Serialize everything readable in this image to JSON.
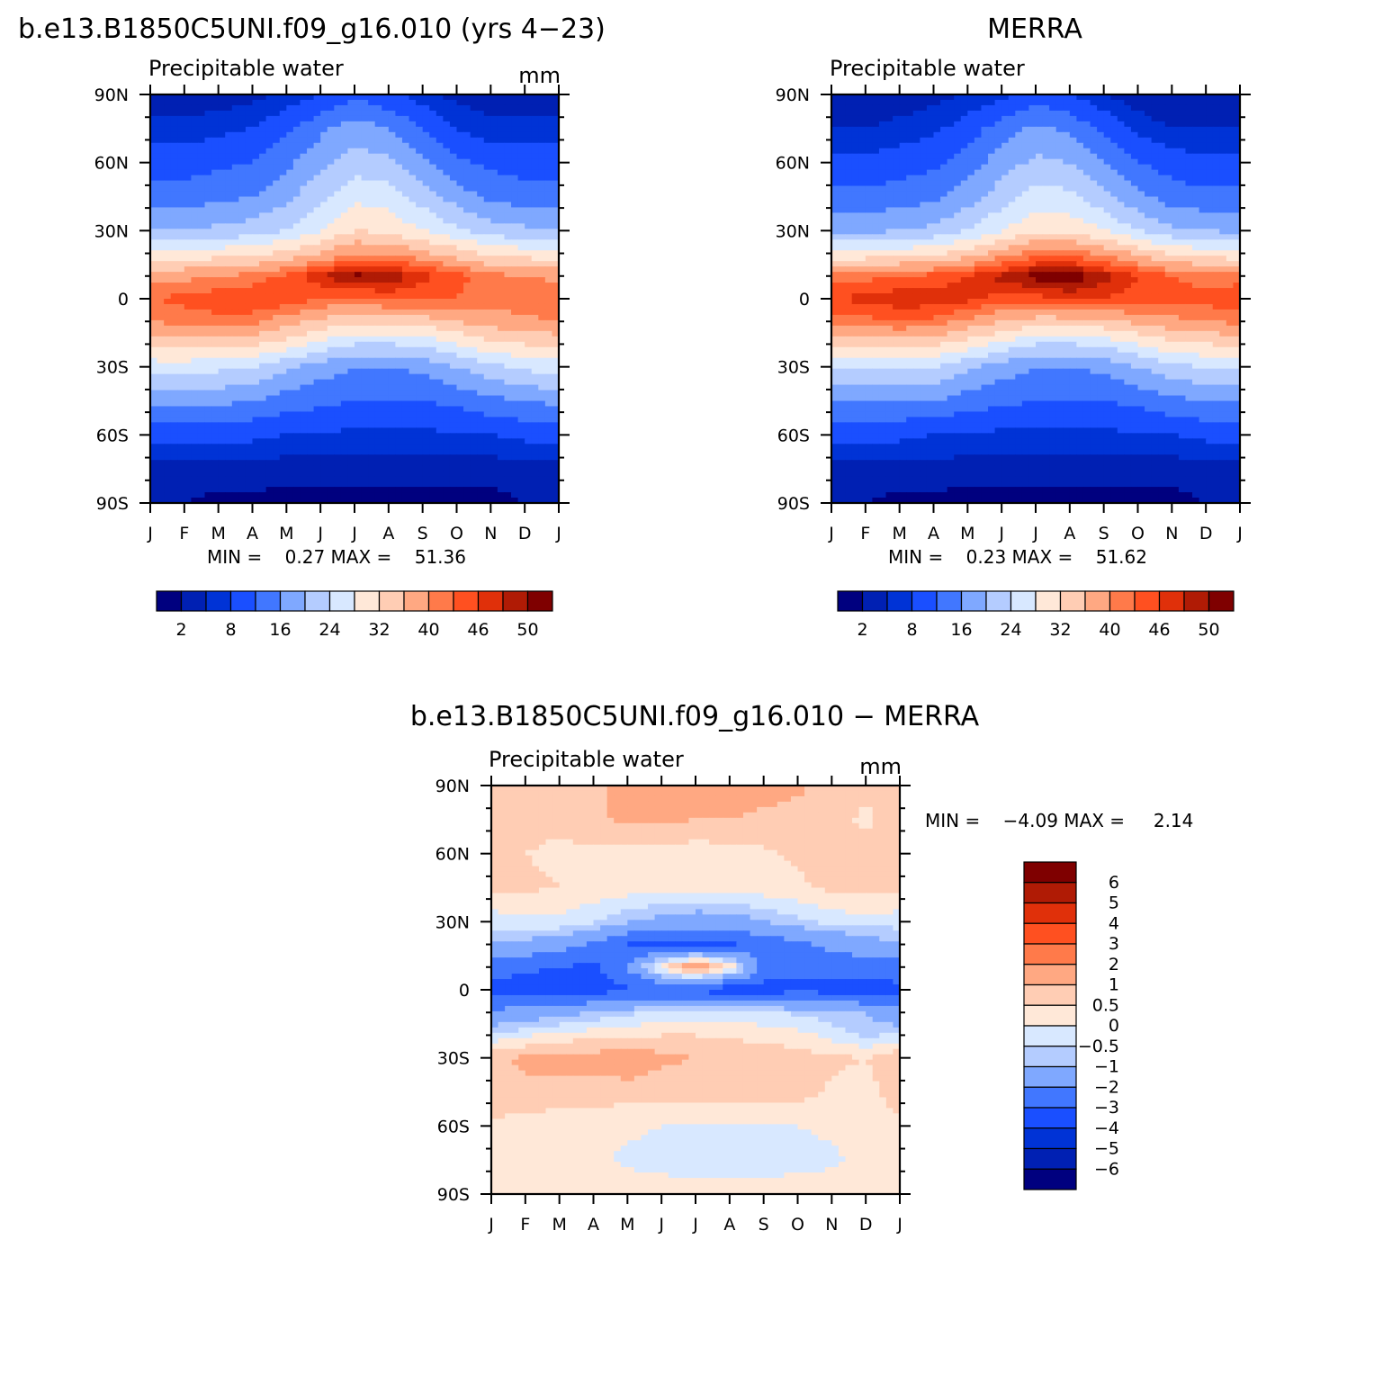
{
  "figure": {
    "palette": {
      "absolute": [
        "#00007f",
        "#0020b3",
        "#0033d6",
        "#1a4fff",
        "#4177ff",
        "#7fa8ff",
        "#b4ccff",
        "#d8e8ff",
        "#ffe8d8",
        "#ffcdb4",
        "#ffa882",
        "#ff7a4a",
        "#ff5020",
        "#e0300a",
        "#b01b05",
        "#7f0000"
      ],
      "difference": [
        "#00007f",
        "#0020b3",
        "#0033d6",
        "#1a4fff",
        "#4177ff",
        "#7fa8ff",
        "#b4ccff",
        "#d8e8ff",
        "#ffe8d8",
        "#ffcdb4",
        "#ffa882",
        "#ff7a4a",
        "#ff5020",
        "#e0300a",
        "#b01b05",
        "#7f0000"
      ]
    }
  },
  "panels": [
    {
      "id": "model",
      "title": "b.e13.B1850C5UNI.f09_g16.010 (yrs 4−23)",
      "subtitle": "Precipitable water",
      "units": "mm",
      "stats": "MIN =    0.27 MAX =    51.36",
      "colorbar_labels": [
        "2",
        "8",
        "16",
        "24",
        "32",
        "40",
        "46",
        "50"
      ]
    },
    {
      "id": "obs",
      "title": "MERRA",
      "subtitle": "Precipitable water",
      "units": "",
      "stats": "MIN =    0.23 MAX =    51.62",
      "colorbar_labels": [
        "2",
        "8",
        "16",
        "24",
        "32",
        "40",
        "46",
        "50"
      ]
    },
    {
      "id": "diff",
      "title": "b.e13.B1850C5UNI.f09_g16.010 − MERRA",
      "subtitle": "Precipitable water",
      "units": "mm",
      "stats": "MIN =    −4.09 MAX =     2.14",
      "colorbar_labels": [
        "6",
        "5",
        "4",
        "3",
        "2",
        "1",
        "0.5",
        "0",
        "−0.5",
        "−1",
        "−2",
        "−3",
        "−4",
        "−5",
        "−6"
      ]
    }
  ],
  "chart_data": [
    {
      "type": "heatmap",
      "title": "b.e13.B1850C5UNI.f09_g16.010 (yrs 4−23)",
      "subtitle": "Precipitable water",
      "units": "mm",
      "x_tick_labels": [
        "J",
        "F",
        "M",
        "A",
        "M",
        "J",
        "J",
        "A",
        "S",
        "O",
        "N",
        "D",
        "J"
      ],
      "y_tick_labels": [
        "90N",
        "60N",
        "30N",
        "0",
        "30S",
        "60S",
        "90S"
      ],
      "xlim": [
        0,
        12
      ],
      "ylim": [
        -90,
        90
      ],
      "contour_levels": [
        0,
        2,
        5,
        8,
        12,
        16,
        20,
        24,
        28,
        32,
        36,
        40,
        43,
        46,
        48,
        50
      ],
      "min": 0.27,
      "max": 51.36,
      "x": [
        0,
        1,
        2,
        3,
        4,
        5,
        6,
        7,
        8,
        9,
        10,
        11,
        12
      ],
      "lat": [
        90,
        75,
        60,
        45,
        30,
        20,
        10,
        0,
        -10,
        -20,
        -30,
        -45,
        -60,
        -75,
        -90
      ],
      "z": [
        [
          3,
          3,
          3,
          4,
          6,
          8,
          11,
          9,
          6,
          4,
          3,
          3,
          3
        ],
        [
          6,
          6,
          7,
          8,
          11,
          15,
          18,
          16,
          12,
          8,
          6,
          6,
          6
        ],
        [
          10,
          10,
          11,
          12,
          15,
          19,
          22,
          21,
          17,
          13,
          11,
          10,
          10
        ],
        [
          14,
          14,
          15,
          16,
          19,
          23,
          27,
          26,
          22,
          18,
          15,
          14,
          14
        ],
        [
          20,
          20,
          21,
          22,
          24,
          28,
          32,
          31,
          28,
          25,
          22,
          21,
          20
        ],
        [
          29,
          29,
          30,
          31,
          33,
          36,
          40,
          40,
          37,
          34,
          31,
          30,
          29
        ],
        [
          39,
          39,
          40,
          41,
          44,
          48,
          51,
          50,
          47,
          44,
          41,
          40,
          39
        ],
        [
          43,
          44,
          45,
          46,
          45,
          43,
          43,
          44,
          44,
          43,
          42,
          42,
          43
        ],
        [
          40,
          41,
          42,
          41,
          38,
          35,
          33,
          33,
          34,
          36,
          38,
          39,
          40
        ],
        [
          33,
          34,
          34,
          33,
          30,
          27,
          24,
          24,
          25,
          28,
          31,
          32,
          33
        ],
        [
          26,
          26,
          25,
          24,
          21,
          18,
          16,
          16,
          17,
          20,
          23,
          25,
          26
        ],
        [
          17,
          17,
          17,
          16,
          14,
          13,
          12,
          12,
          12,
          13,
          15,
          16,
          17
        ],
        [
          9,
          9,
          9,
          9,
          8,
          8,
          7,
          7,
          7,
          8,
          8,
          9,
          9
        ],
        [
          4,
          4,
          4,
          4,
          3,
          3,
          3,
          3,
          3,
          3,
          3,
          4,
          4
        ],
        [
          2,
          2,
          1,
          1,
          1,
          1,
          1,
          1,
          1,
          1,
          1,
          2,
          2
        ]
      ]
    },
    {
      "type": "heatmap",
      "title": "MERRA",
      "subtitle": "Precipitable water",
      "x_tick_labels": [
        "J",
        "F",
        "M",
        "A",
        "M",
        "J",
        "J",
        "A",
        "S",
        "O",
        "N",
        "D",
        "J"
      ],
      "y_tick_labels": [
        "90N",
        "60N",
        "30N",
        "0",
        "30S",
        "60S",
        "90S"
      ],
      "xlim": [
        0,
        12
      ],
      "ylim": [
        -90,
        90
      ],
      "contour_levels": [
        0,
        2,
        5,
        8,
        12,
        16,
        20,
        24,
        28,
        32,
        36,
        40,
        43,
        46,
        48,
        50
      ],
      "min": 0.23,
      "max": 51.62,
      "x": [
        0,
        1,
        2,
        3,
        4,
        5,
        6,
        7,
        8,
        9,
        10,
        11,
        12
      ],
      "lat": [
        90,
        75,
        60,
        45,
        30,
        20,
        10,
        0,
        -10,
        -20,
        -30,
        -45,
        -60,
        -75,
        -90
      ],
      "z": [
        [
          2,
          2,
          3,
          4,
          5,
          7,
          10,
          8,
          5,
          3,
          2,
          2,
          2
        ],
        [
          5,
          5,
          6,
          7,
          10,
          14,
          17,
          15,
          11,
          7,
          5,
          5,
          5
        ],
        [
          9,
          9,
          10,
          11,
          14,
          18,
          21,
          20,
          16,
          12,
          10,
          9,
          9
        ],
        [
          13,
          13,
          14,
          15,
          18,
          22,
          26,
          25,
          21,
          17,
          14,
          13,
          13
        ],
        [
          19,
          19,
          20,
          21,
          24,
          28,
          31,
          31,
          28,
          24,
          21,
          20,
          19
        ],
        [
          29,
          29,
          30,
          31,
          34,
          38,
          42,
          42,
          39,
          35,
          31,
          30,
          29
        ],
        [
          41,
          42,
          43,
          44,
          46,
          49,
          51,
          52,
          49,
          46,
          43,
          42,
          41
        ],
        [
          46,
          47,
          48,
          48,
          47,
          45,
          45,
          46,
          46,
          45,
          44,
          44,
          46
        ],
        [
          41,
          42,
          43,
          42,
          39,
          36,
          34,
          34,
          35,
          37,
          39,
          40,
          41
        ],
        [
          33,
          33,
          34,
          33,
          30,
          27,
          24,
          24,
          25,
          28,
          31,
          32,
          33
        ],
        [
          25,
          25,
          25,
          24,
          21,
          18,
          16,
          16,
          17,
          20,
          23,
          24,
          25
        ],
        [
          16,
          16,
          16,
          16,
          14,
          13,
          12,
          12,
          12,
          13,
          15,
          16,
          16
        ],
        [
          9,
          9,
          9,
          8,
          8,
          7,
          7,
          7,
          7,
          8,
          8,
          9,
          9
        ],
        [
          4,
          4,
          4,
          4,
          3,
          3,
          3,
          3,
          3,
          3,
          3,
          4,
          4
        ],
        [
          2,
          2,
          1,
          1,
          1,
          1,
          1,
          1,
          1,
          1,
          1,
          2,
          2
        ]
      ]
    },
    {
      "type": "heatmap",
      "title": "b.e13.B1850C5UNI.f09_g16.010 − MERRA",
      "subtitle": "Precipitable water",
      "units": "mm",
      "x_tick_labels": [
        "J",
        "F",
        "M",
        "A",
        "M",
        "J",
        "J",
        "A",
        "S",
        "O",
        "N",
        "D",
        "J"
      ],
      "y_tick_labels": [
        "90N",
        "60N",
        "30N",
        "0",
        "30S",
        "60S",
        "90S"
      ],
      "xlim": [
        0,
        12
      ],
      "ylim": [
        -90,
        90
      ],
      "contour_levels": [
        -7,
        -6,
        -5,
        -4,
        -3,
        -2,
        -1,
        -0.5,
        0,
        0.5,
        1,
        2,
        3,
        4,
        5,
        6
      ],
      "min": -4.09,
      "max": 2.14,
      "x": [
        0,
        1,
        2,
        3,
        4,
        5,
        6,
        7,
        8,
        9,
        10,
        11,
        12
      ],
      "lat": [
        90,
        75,
        60,
        45,
        30,
        20,
        10,
        0,
        -10,
        -20,
        -30,
        -45,
        -60,
        -75,
        -90
      ],
      "z": [
        [
          0.8,
          0.8,
          0.8,
          0.9,
          1.2,
          1.3,
          1.3,
          1.4,
          1.2,
          1.1,
          0.8,
          0.6,
          0.8
        ],
        [
          0.8,
          0.7,
          0.6,
          0.9,
          1.1,
          1.1,
          1.0,
          1.0,
          0.9,
          0.8,
          0.7,
          0.4,
          0.8
        ],
        [
          0.6,
          0.5,
          0.4,
          0.4,
          0.3,
          0.3,
          0.2,
          0.3,
          0.4,
          0.6,
          0.7,
          0.7,
          0.6
        ],
        [
          0.7,
          0.6,
          0.5,
          0.3,
          0.3,
          0.2,
          0.2,
          0.2,
          0.3,
          0.4,
          0.6,
          0.7,
          0.7
        ],
        [
          -0.3,
          -0.2,
          -0.1,
          -0.4,
          -0.9,
          -1.3,
          -1.5,
          -1.4,
          -1.0,
          -0.6,
          -0.3,
          -0.2,
          -0.3
        ],
        [
          -1.0,
          -1.2,
          -1.5,
          -2.2,
          -3.0,
          -3.3,
          -3.2,
          -3.1,
          -2.6,
          -2.2,
          -1.8,
          -1.5,
          -1.0
        ],
        [
          -2.6,
          -2.8,
          -3.0,
          -3.2,
          -2.0,
          0.4,
          1.8,
          0.5,
          -2.3,
          -2.8,
          -2.5,
          -2.4,
          -2.6
        ],
        [
          -3.2,
          -3.5,
          -3.8,
          -3.5,
          -3.1,
          -3.0,
          -3.2,
          -3.6,
          -3.5,
          -3.2,
          -3.4,
          -3.5,
          -3.2
        ],
        [
          -1.8,
          -1.6,
          -1.3,
          -0.9,
          -0.6,
          -0.4,
          -0.3,
          -0.3,
          -0.4,
          -0.6,
          -0.8,
          -1.0,
          -1.8
        ],
        [
          -0.4,
          -0.1,
          0.2,
          0.3,
          0.4,
          0.5,
          0.5,
          0.4,
          0.3,
          0.2,
          -0.2,
          -0.6,
          -0.4
        ],
        [
          0.9,
          1.1,
          1.3,
          1.2,
          1.5,
          1.1,
          1.0,
          1.0,
          0.9,
          0.7,
          0.6,
          0.5,
          0.9
        ],
        [
          0.8,
          0.9,
          0.8,
          0.8,
          0.7,
          0.7,
          0.8,
          0.8,
          0.8,
          0.7,
          0.4,
          0.3,
          0.8
        ],
        [
          0.4,
          0.3,
          0.2,
          0.2,
          0.1,
          0.0,
          -0.1,
          -0.1,
          -0.1,
          0.0,
          0.1,
          0.2,
          0.4
        ],
        [
          0.3,
          0.3,
          0.2,
          0.1,
          -0.1,
          -0.2,
          -0.3,
          -0.3,
          -0.3,
          -0.2,
          -0.1,
          0.2,
          0.3
        ],
        [
          0.3,
          0.3,
          0.3,
          0.3,
          0.3,
          0.3,
          0.2,
          0.2,
          0.3,
          0.3,
          0.3,
          0.3,
          0.3
        ]
      ]
    }
  ]
}
